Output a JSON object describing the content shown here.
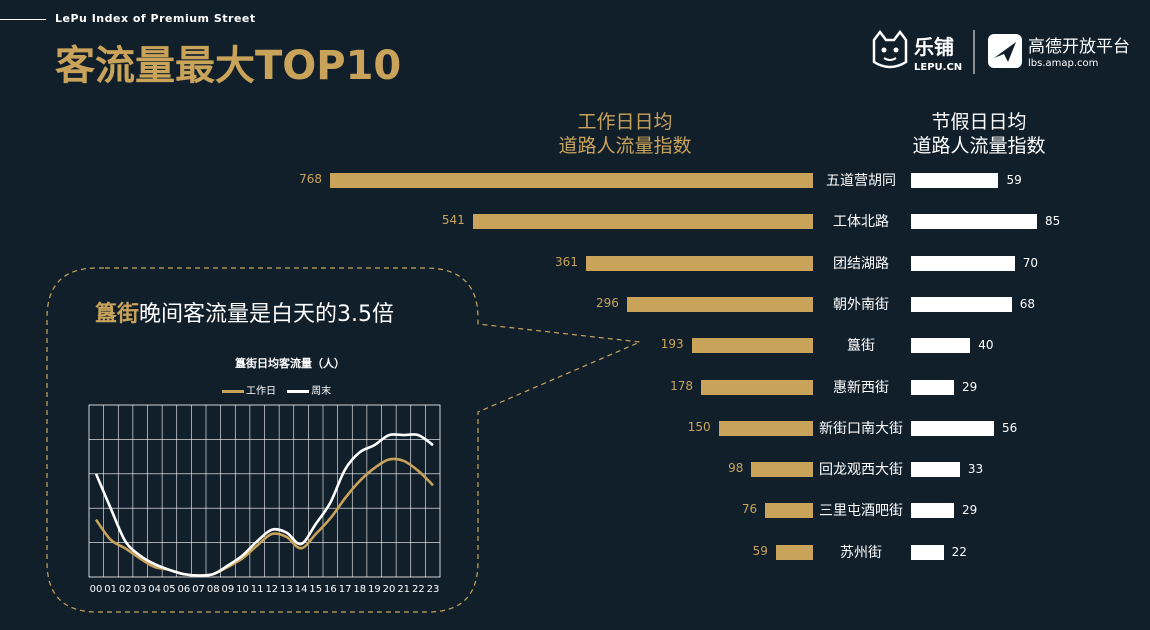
{
  "header": {
    "subtitle": "LePu Index of Premium Street",
    "title": "客流量最大TOP10"
  },
  "logos": {
    "lepu_name": "乐铺",
    "lepu_url": "LEPU.CN",
    "amap_name": "高德开放平台",
    "amap_url": "lbs.amap.com"
  },
  "columns": {
    "weekday_line1": "工作日日均",
    "weekday_line2": "道路人流量指数",
    "holiday_line1": "节假日日均",
    "holiday_line2": "道路人流量指数"
  },
  "callout": {
    "highlight": "簋街",
    "text": "晚间客流量是白天的3.5倍"
  },
  "colors": {
    "gold": "#c9a35a",
    "white": "#ffffff",
    "background": "#111f2b"
  },
  "chart_data": [
    {
      "type": "bar",
      "title": "客流量最大TOP10",
      "categories": [
        "五道营胡同",
        "工体北路",
        "团结湖路",
        "朝外南街",
        "簋街",
        "惠新西街",
        "新街口南大街",
        "回龙观西大街",
        "三里屯酒吧街",
        "苏州街"
      ],
      "series": [
        {
          "name": "工作日日均道路人流量指数",
          "values": [
            768,
            541,
            361,
            296,
            193,
            178,
            150,
            98,
            76,
            59
          ]
        },
        {
          "name": "节假日日均道路人流量指数",
          "values": [
            59,
            85,
            70,
            68,
            40,
            29,
            56,
            33,
            29,
            22
          ]
        }
      ]
    },
    {
      "type": "line",
      "title": "簋街日均客流量（人）",
      "x": [
        "00",
        "01",
        "02",
        "03",
        "04",
        "05",
        "06",
        "07",
        "08",
        "09",
        "10",
        "11",
        "12",
        "13",
        "14",
        "15",
        "16",
        "17",
        "18",
        "19",
        "20",
        "21",
        "22",
        "23"
      ],
      "series": [
        {
          "name": "工作日",
          "values": [
            40,
            26,
            20,
            13,
            7,
            5,
            2,
            1,
            2,
            7,
            13,
            22,
            30,
            28,
            20,
            30,
            41,
            55,
            67,
            76,
            82,
            81,
            74,
            64
          ]
        },
        {
          "name": "周末",
          "values": [
            72,
            48,
            25,
            15,
            9,
            5,
            2,
            1,
            2,
            8,
            15,
            25,
            33,
            31,
            23,
            37,
            52,
            75,
            87,
            92,
            99,
            99,
            99,
            92
          ]
        }
      ],
      "legend": [
        "工作日",
        "周末"
      ],
      "ylim": [
        0,
        120
      ],
      "grid": true
    }
  ]
}
